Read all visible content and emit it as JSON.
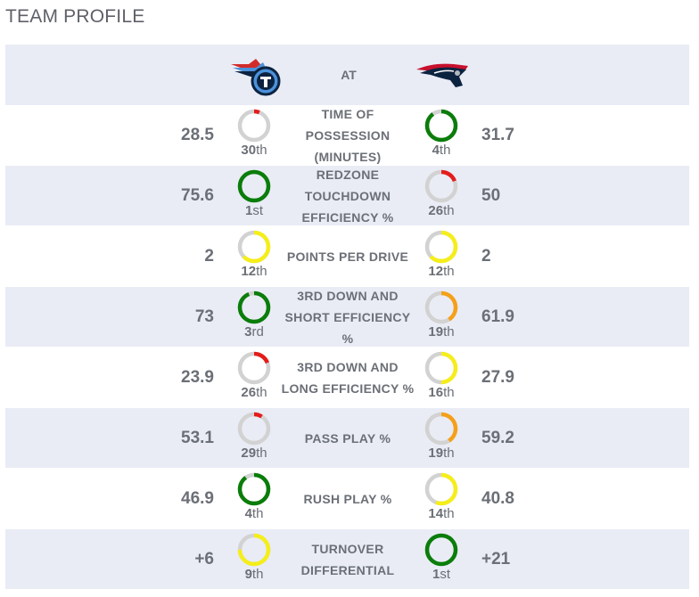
{
  "title": "TEAM PROFILE",
  "header": {
    "at_label": "AT",
    "away_logo": "titans-logo-icon",
    "home_logo": "patriots-logo-icon"
  },
  "colors": {
    "green": "#0a7d0a",
    "yellow": "#f5ee1a",
    "orange": "#f5a019",
    "red": "#e41c1c",
    "track": "#d2d2d2"
  },
  "rows": [
    {
      "label": "TIME OF POSSESSION (MINUTES)",
      "away": {
        "value": "28.5",
        "rank": "30",
        "suffix": "th",
        "fill": 0.06,
        "color": "red"
      },
      "home": {
        "value": "31.7",
        "rank": "4",
        "suffix": "th",
        "fill": 0.9,
        "color": "green"
      }
    },
    {
      "label": "REDZONE TOUCHDOWN EFFICIENCY %",
      "away": {
        "value": "75.6",
        "rank": "1",
        "suffix": "st",
        "fill": 1.0,
        "color": "green"
      },
      "home": {
        "value": "50",
        "rank": "26",
        "suffix": "th",
        "fill": 0.19,
        "color": "red"
      }
    },
    {
      "label": "POINTS PER DRIVE",
      "away": {
        "value": "2",
        "rank": "12",
        "suffix": "th",
        "fill": 0.63,
        "color": "yellow"
      },
      "home": {
        "value": "2",
        "rank": "12",
        "suffix": "th",
        "fill": 0.63,
        "color": "yellow"
      }
    },
    {
      "label": "3RD DOWN AND SHORT EFFICIENCY %",
      "away": {
        "value": "73",
        "rank": "3",
        "suffix": "rd",
        "fill": 0.94,
        "color": "green"
      },
      "home": {
        "value": "61.9",
        "rank": "19",
        "suffix": "th",
        "fill": 0.41,
        "color": "orange"
      }
    },
    {
      "label": "3RD DOWN AND LONG EFFICIENCY %",
      "away": {
        "value": "23.9",
        "rank": "26",
        "suffix": "th",
        "fill": 0.19,
        "color": "red"
      },
      "home": {
        "value": "27.9",
        "rank": "16",
        "suffix": "th",
        "fill": 0.5,
        "color": "yellow"
      }
    },
    {
      "label": "PASS PLAY %",
      "away": {
        "value": "53.1",
        "rank": "29",
        "suffix": "th",
        "fill": 0.09,
        "color": "red"
      },
      "home": {
        "value": "59.2",
        "rank": "19",
        "suffix": "th",
        "fill": 0.41,
        "color": "orange"
      }
    },
    {
      "label": "RUSH PLAY %",
      "away": {
        "value": "46.9",
        "rank": "4",
        "suffix": "th",
        "fill": 0.9,
        "color": "green"
      },
      "home": {
        "value": "40.8",
        "rank": "14",
        "suffix": "th",
        "fill": 0.56,
        "color": "yellow"
      }
    },
    {
      "label": "TURNOVER DIFFERENTIAL",
      "away": {
        "value": "+6",
        "rank": "9",
        "suffix": "th",
        "fill": 0.75,
        "color": "yellow"
      },
      "home": {
        "value": "+21",
        "rank": "1",
        "suffix": "st",
        "fill": 1.0,
        "color": "green"
      }
    }
  ]
}
